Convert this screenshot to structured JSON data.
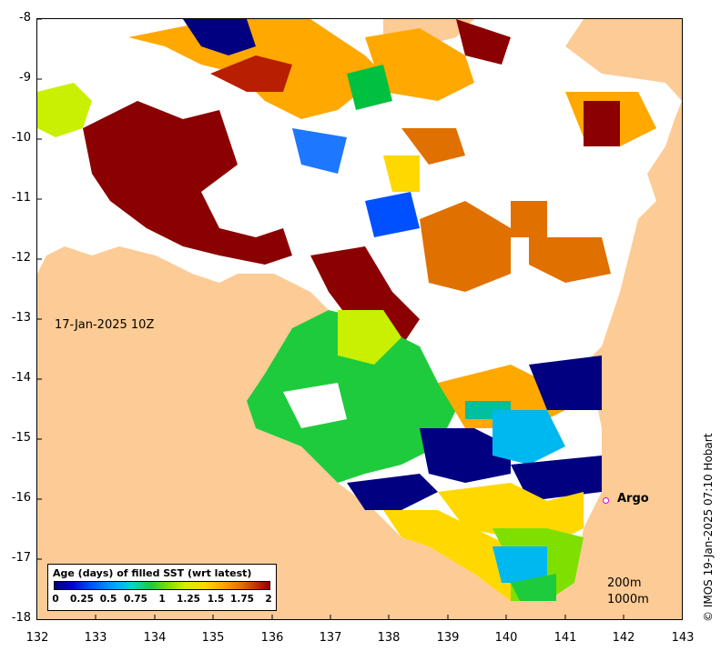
{
  "map": {
    "y_ticks": [
      "-8",
      "-9",
      "-10",
      "-11",
      "-12",
      "-13",
      "-14",
      "-15",
      "-16",
      "-17",
      "-18"
    ],
    "x_ticks": [
      "132",
      "133",
      "134",
      "135",
      "136",
      "137",
      "138",
      "139",
      "140",
      "141",
      "142",
      "143"
    ],
    "lon_range": [
      132,
      143
    ],
    "lat_range": [
      -18,
      -8
    ],
    "date_label": "17-Jan-2025 10Z",
    "argo_label": "Argo",
    "depth_labels": [
      "200m",
      "1000m"
    ],
    "credit": "© IMOS 19-Jan-2025 07:10 Hobart",
    "land_color": "#fdcb95",
    "marker_color": "#e000e0"
  },
  "legend": {
    "title": "Age (days) of filled SST (wrt latest)",
    "ticks": [
      "0",
      "0.25",
      "0.5",
      "0.75",
      "1",
      "1.25",
      "1.5",
      "1.75",
      "2"
    ]
  }
}
